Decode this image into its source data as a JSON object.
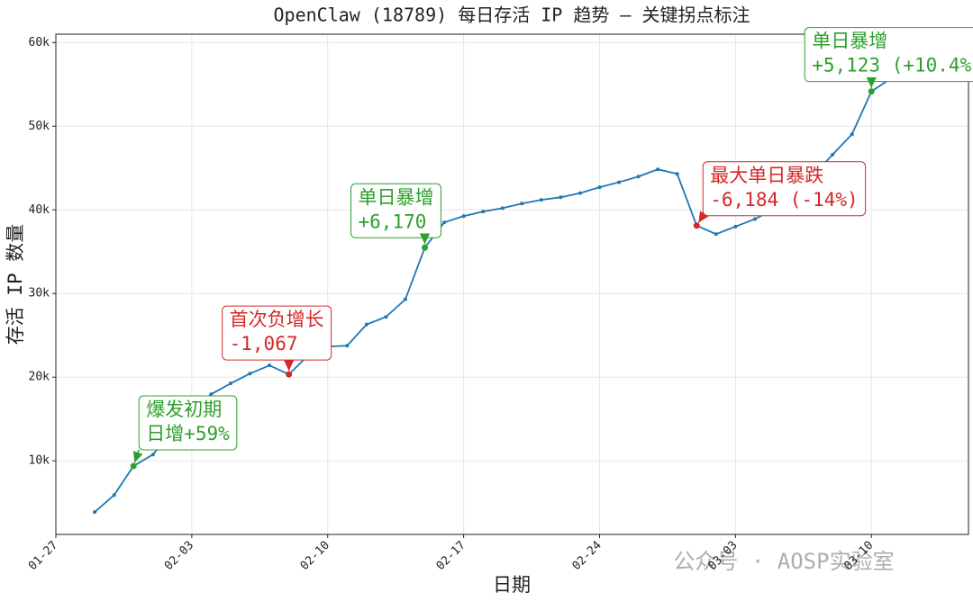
{
  "chart_data": {
    "type": "line",
    "title": "OpenClaw (18789) 每日存活 IP 趋势 — 关键拐点标注",
    "xlabel": "日期",
    "ylabel": "存活 IP 数量",
    "x": [
      "01-29",
      "01-30",
      "01-31",
      "02-01",
      "02-02",
      "02-03",
      "02-04",
      "02-05",
      "02-06",
      "02-07",
      "02-08",
      "02-09",
      "02-10",
      "02-11",
      "02-12",
      "02-13",
      "02-14",
      "02-15",
      "02-16",
      "02-17",
      "02-18",
      "02-19",
      "02-20",
      "02-21",
      "02-22",
      "02-23",
      "02-24",
      "02-25",
      "02-26",
      "02-27",
      "02-28",
      "03-01",
      "03-02",
      "03-03",
      "03-04",
      "03-05",
      "03-06",
      "03-07",
      "03-08",
      "03-09",
      "03-10",
      "03-11"
    ],
    "series": [
      {
        "color": "#1f77b4",
        "values": [
          3870,
          5900,
          9380,
          10750,
          13500,
          16000,
          17960,
          19250,
          20430,
          21400,
          20333,
          22600,
          23650,
          23760,
          26300,
          27200,
          29310,
          35480,
          38500,
          39250,
          39800,
          40200,
          40750,
          41200,
          41500,
          42000,
          42700,
          43300,
          43980,
          44840,
          44300,
          38116,
          37100,
          38000,
          38900,
          40100,
          41400,
          44100,
          46600,
          49030,
          54153,
          55700
        ]
      }
    ],
    "xlim": [
      "01-27",
      "03-15"
    ],
    "xticks": [
      "01-27",
      "02-03",
      "02-10",
      "02-17",
      "02-24",
      "03-03",
      "03-10"
    ],
    "ylim": [
      1200,
      61000
    ],
    "yticks": [
      {
        "value": 10000,
        "label": "10k"
      },
      {
        "value": 20000,
        "label": "20k"
      },
      {
        "value": 30000,
        "label": "30k"
      },
      {
        "value": 40000,
        "label": "40k"
      },
      {
        "value": 50000,
        "label": "50k"
      },
      {
        "value": 60000,
        "label": "60k"
      }
    ],
    "grid": true,
    "annotations": [
      {
        "x": "01-31",
        "lines": [
          "爆发初期",
          "日增+59%"
        ],
        "color": "#2ca02c"
      },
      {
        "x": "02-08",
        "lines": [
          "首次负增长",
          "-1,067"
        ],
        "color": "#d62728"
      },
      {
        "x": "02-15",
        "lines": [
          "单日暴增",
          "+6,170"
        ],
        "color": "#2ca02c"
      },
      {
        "x": "03-01",
        "lines": [
          "最大单日暴跌",
          "-6,184 (-14%)"
        ],
        "color": "#d62728"
      },
      {
        "x": "03-10",
        "lines": [
          "单日暴增",
          "+5,123 (+10.4%)"
        ],
        "color": "#2ca02c"
      }
    ],
    "watermark": "公众号 · AOSP实验室"
  }
}
